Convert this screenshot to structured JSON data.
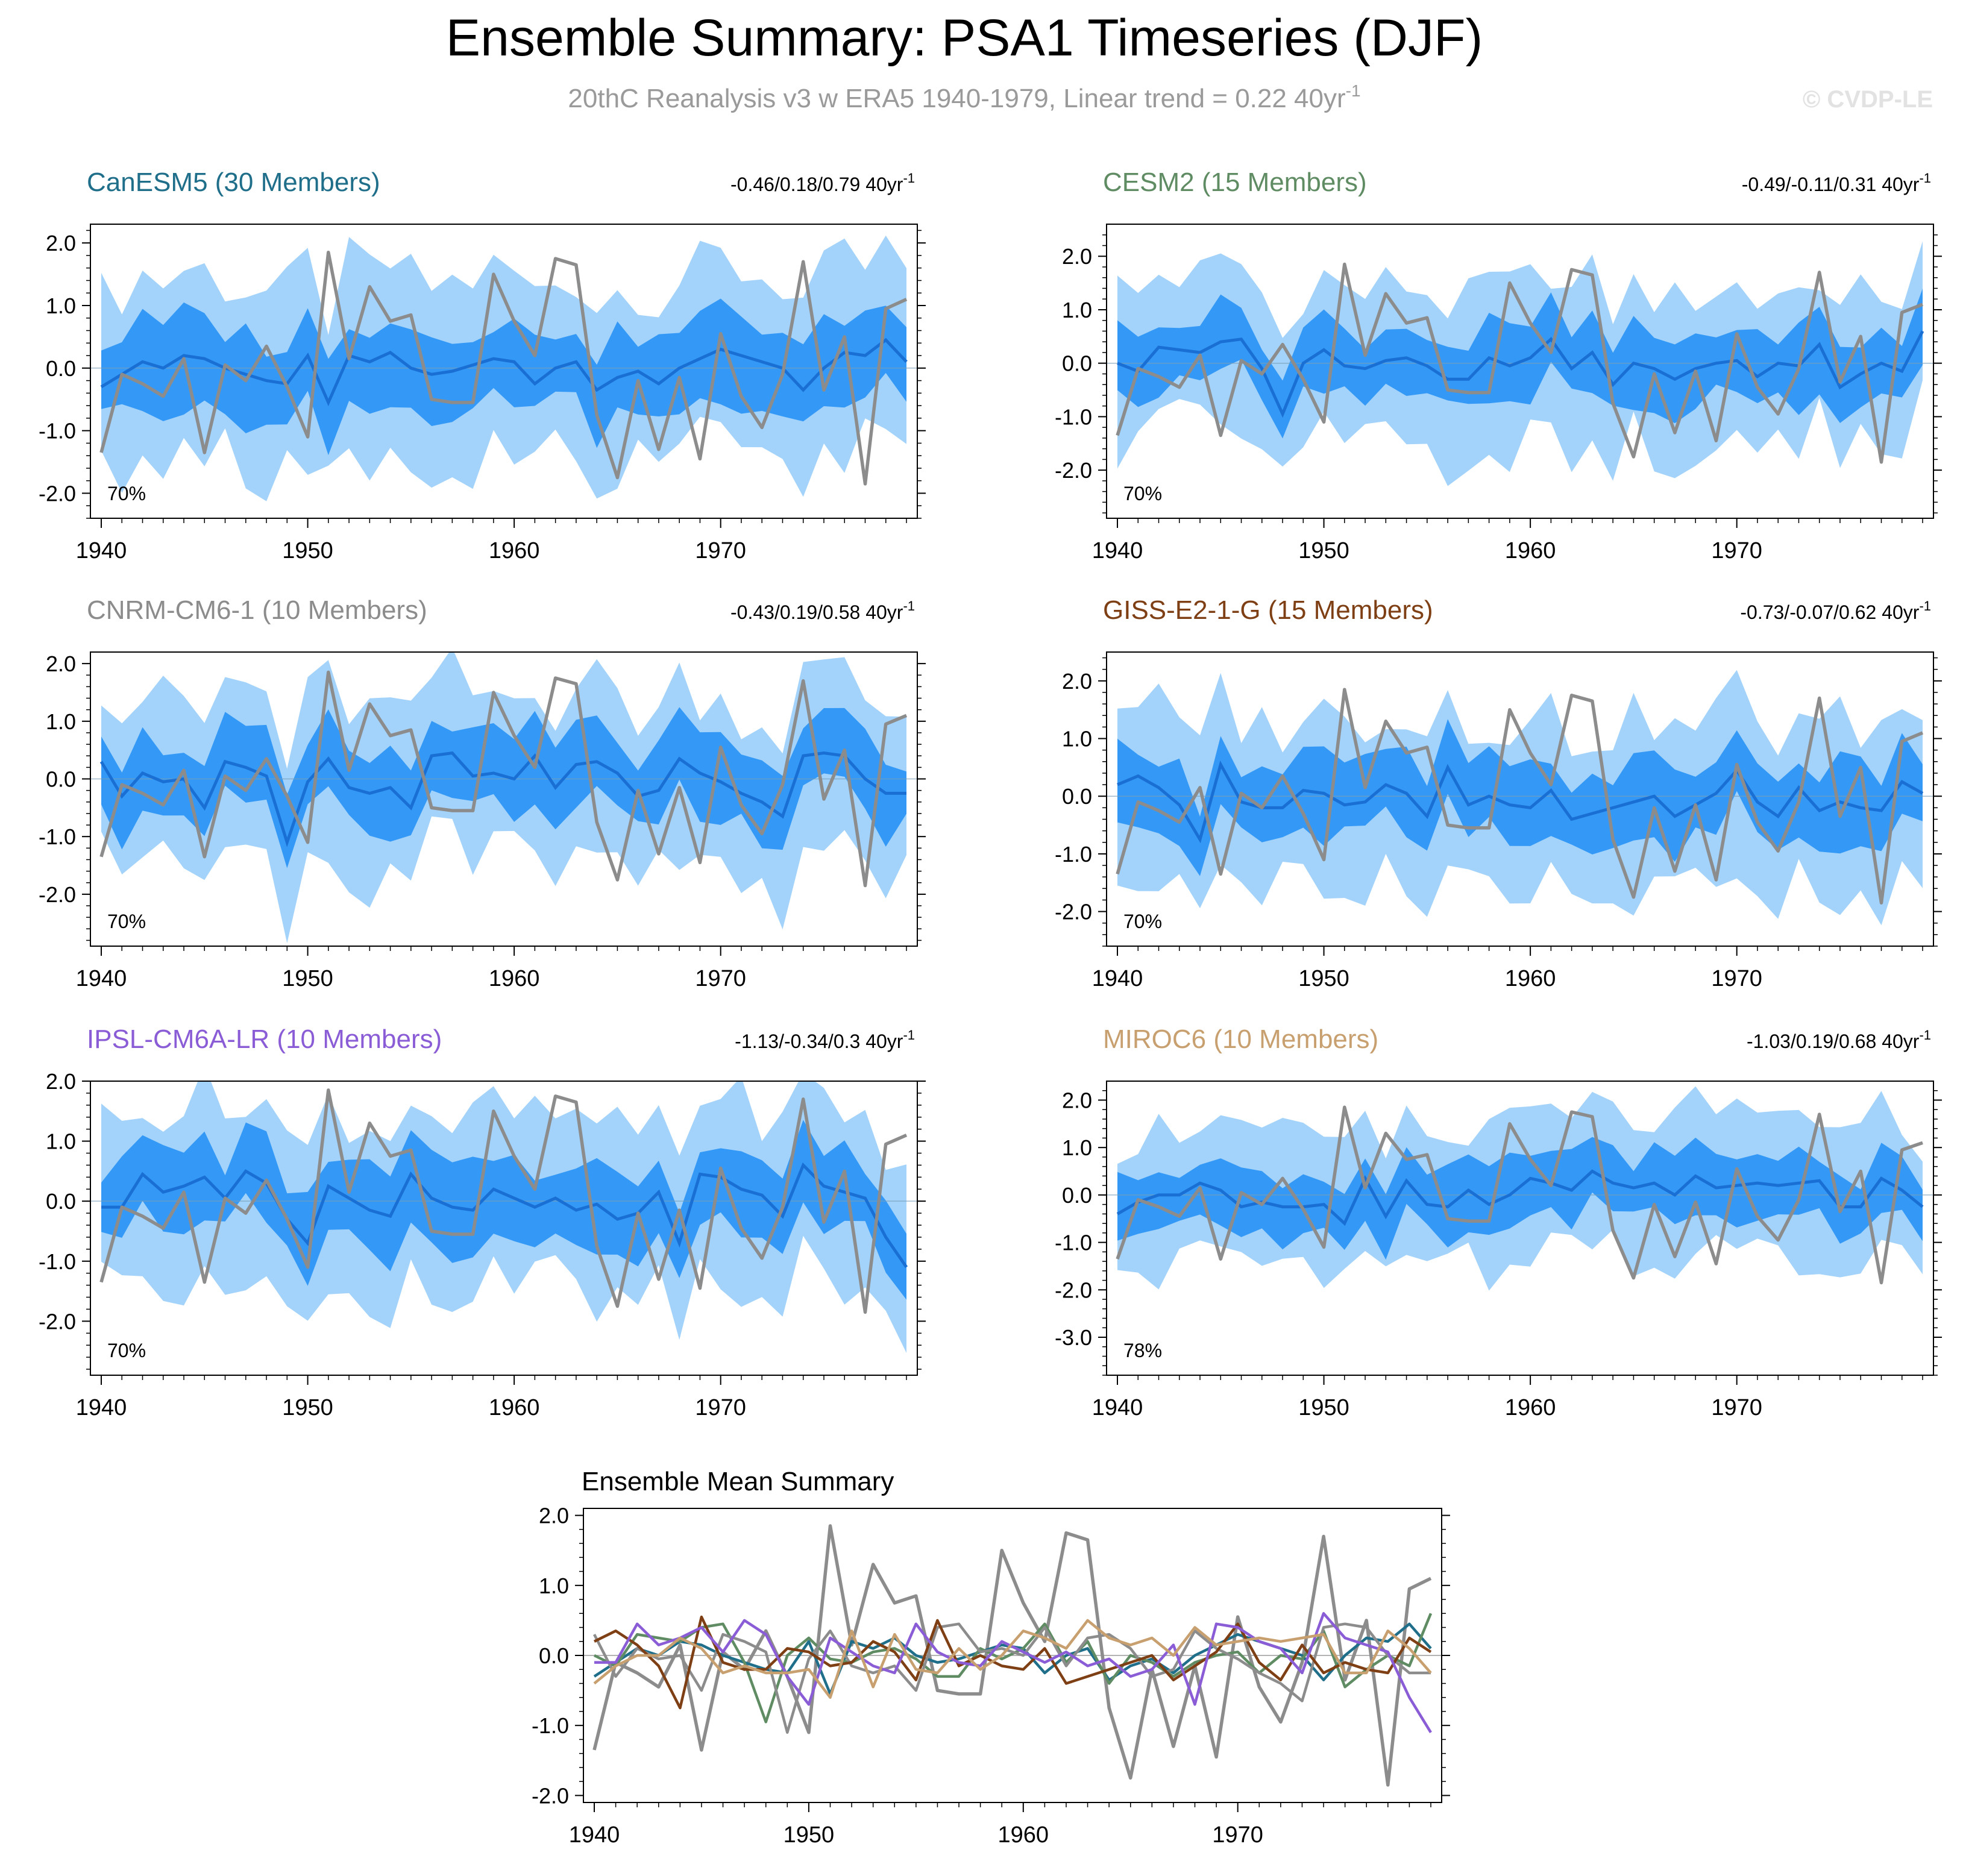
{
  "header": {
    "title": "Ensemble Summary: PSA1 Timeseries (DJF)",
    "subtitle_main": "20thC Reanalysis v3 w ERA5 1940-1979, Linear trend = 0.22 40yr",
    "subtitle_sup": "-1",
    "watermark": "© CVDP-LE"
  },
  "chart_data": {
    "type": "line",
    "years": [
      1940,
      1941,
      1942,
      1943,
      1944,
      1945,
      1946,
      1947,
      1948,
      1949,
      1950,
      1951,
      1952,
      1953,
      1954,
      1955,
      1956,
      1957,
      1958,
      1959,
      1960,
      1961,
      1962,
      1963,
      1964,
      1965,
      1966,
      1967,
      1968,
      1969,
      1970,
      1971,
      1972,
      1973,
      1974,
      1975,
      1976,
      1977,
      1978,
      1979
    ],
    "xticks": [
      "1940",
      "1950",
      "1960",
      "1970"
    ],
    "observed": {
      "name": "20thC Reanalysis v3 w ERA5",
      "color": "#8c8c8c",
      "values": [
        -1.35,
        -0.1,
        -0.25,
        -0.45,
        0.15,
        -1.35,
        0.05,
        -0.2,
        0.35,
        -0.3,
        -1.1,
        1.85,
        0.15,
        1.3,
        0.75,
        0.85,
        -0.5,
        -0.55,
        -0.55,
        1.5,
        0.75,
        0.2,
        1.75,
        1.65,
        -0.75,
        -1.75,
        -0.2,
        -1.3,
        -0.15,
        -1.45,
        0.55,
        -0.45,
        -0.95,
        -0.1,
        1.7,
        -0.35,
        0.5,
        -1.85,
        0.95,
        1.1
      ]
    },
    "panels": [
      {
        "model": "CanESM5",
        "members_label": "CanESM5 (30 Members)",
        "color": "#1f6e8a",
        "trend_text": "-0.46/0.18/0.79 40yr",
        "trend_sup": "-1",
        "pct_label": "70%",
        "ylim": [
          -2.4,
          2.3
        ],
        "yticks": [
          "2.0",
          "1.0",
          "0.0",
          "-1.0",
          "-2.0"
        ],
        "ytick_values": [
          2,
          1,
          0,
          -1,
          -2
        ],
        "ens_mean": [
          -0.3,
          -0.1,
          0.1,
          0.0,
          0.2,
          0.15,
          0.0,
          -0.1,
          -0.2,
          -0.25,
          0.2,
          -0.55,
          0.2,
          0.1,
          0.25,
          0.0,
          -0.1,
          -0.05,
          0.05,
          0.15,
          0.1,
          -0.25,
          0.0,
          0.1,
          -0.35,
          -0.15,
          -0.05,
          -0.25,
          0.0,
          0.15,
          0.3,
          0.2,
          0.1,
          0.0,
          -0.35,
          0.0,
          0.25,
          0.2,
          0.45,
          0.1
        ]
      },
      {
        "model": "CESM2",
        "members_label": "CESM2 (15 Members)",
        "color": "#5f8c63",
        "trend_text": "-0.49/-0.11/0.31 40yr",
        "trend_sup": "-1",
        "pct_label": "70%",
        "ylim": [
          -2.9,
          2.6
        ],
        "yticks": [
          "2.0",
          "1.0",
          "0.0",
          "-1.0",
          "-2.0"
        ],
        "ytick_values": [
          2,
          1,
          0,
          -1,
          -2
        ],
        "ens_mean": [
          0.0,
          -0.15,
          0.3,
          0.25,
          0.2,
          0.4,
          0.45,
          -0.1,
          -0.95,
          0.0,
          0.25,
          -0.05,
          -0.1,
          0.05,
          0.1,
          -0.05,
          -0.3,
          -0.3,
          0.1,
          -0.05,
          0.1,
          0.45,
          -0.1,
          0.2,
          -0.4,
          0.0,
          -0.1,
          -0.3,
          -0.1,
          0.0,
          0.05,
          -0.25,
          0.0,
          -0.05,
          0.35,
          -0.45,
          -0.2,
          0.0,
          -0.15,
          0.6
        ]
      },
      {
        "model": "CNRM-CM6-1",
        "members_label": "CNRM-CM6-1 (10 Members)",
        "color": "#8c8c8c",
        "trend_text": "-0.43/0.19/0.58 40yr",
        "trend_sup": "-1",
        "pct_label": "70%",
        "ylim": [
          -2.9,
          2.2
        ],
        "yticks": [
          "2.0",
          "1.0",
          "0.0",
          "-1.0",
          "-2.0"
        ],
        "ytick_values": [
          2,
          1,
          0,
          -1,
          -2
        ],
        "ens_mean": [
          0.3,
          -0.3,
          0.1,
          -0.05,
          0.0,
          -0.5,
          0.3,
          0.2,
          0.05,
          -1.1,
          -0.05,
          0.35,
          -0.15,
          -0.25,
          -0.15,
          -0.5,
          0.4,
          0.45,
          0.05,
          0.1,
          0.0,
          0.4,
          -0.15,
          0.25,
          0.3,
          0.1,
          -0.3,
          -0.2,
          0.35,
          0.1,
          -0.05,
          -0.25,
          -0.4,
          -0.65,
          0.4,
          0.45,
          0.4,
          0.0,
          -0.25,
          -0.25
        ]
      },
      {
        "model": "GISS-E2-1-G",
        "members_label": "GISS-E2-1-G (15 Members)",
        "color": "#7f3f14",
        "trend_text": "-0.73/-0.07/0.62 40yr",
        "trend_sup": "-1",
        "pct_label": "70%",
        "ylim": [
          -2.6,
          2.5
        ],
        "yticks": [
          "2.0",
          "1.0",
          "0.0",
          "-1.0",
          "-2.0"
        ],
        "ytick_values": [
          2,
          1,
          0,
          -1,
          -2
        ],
        "ens_mean": [
          0.2,
          0.35,
          0.15,
          -0.15,
          -0.75,
          0.55,
          -0.1,
          -0.2,
          -0.2,
          0.1,
          0.05,
          -0.15,
          -0.1,
          0.2,
          0.05,
          -0.35,
          0.5,
          -0.15,
          0.0,
          -0.15,
          -0.2,
          0.1,
          -0.4,
          -0.3,
          -0.2,
          -0.1,
          0.0,
          -0.35,
          -0.15,
          0.05,
          0.45,
          -0.1,
          -0.35,
          0.15,
          -0.25,
          -0.1,
          -0.2,
          -0.25,
          0.25,
          0.05
        ]
      },
      {
        "model": "IPSL-CM6A-LR",
        "members_label": "IPSL-CM6A-LR (10 Members)",
        "color": "#8a5cd6",
        "trend_text": "-1.13/-0.34/0.3 40yr",
        "trend_sup": "-1",
        "pct_label": "70%",
        "ylim": [
          -2.9,
          2.0
        ],
        "yticks": [
          "2.0",
          "1.0",
          "0.0",
          "-1.0",
          "-2.0"
        ],
        "ytick_values": [
          2,
          1,
          0,
          -1,
          -2
        ],
        "ens_mean": [
          -0.1,
          -0.1,
          0.45,
          0.15,
          0.25,
          0.4,
          0.05,
          0.5,
          0.3,
          -0.3,
          -0.7,
          0.25,
          0.05,
          -0.15,
          -0.25,
          0.45,
          0.05,
          -0.1,
          -0.15,
          0.2,
          0.05,
          -0.1,
          0.05,
          -0.15,
          -0.05,
          -0.3,
          -0.2,
          0.15,
          -0.7,
          0.45,
          0.4,
          0.2,
          0.1,
          -0.25,
          0.6,
          0.25,
          0.15,
          0.05,
          -0.6,
          -1.1
        ]
      },
      {
        "model": "MIROC6",
        "members_label": "MIROC6 (10 Members)",
        "color": "#c8a070",
        "trend_text": "-1.03/0.19/0.68 40yr",
        "trend_sup": "-1",
        "pct_label": "78%",
        "ylim": [
          -3.8,
          2.4
        ],
        "yticks": [
          "2.0",
          "1.0",
          "0.0",
          "-1.0",
          "-2.0",
          "-3.0"
        ],
        "ytick_values": [
          2,
          1,
          0,
          -1,
          -2,
          -3
        ],
        "ens_mean": [
          -0.4,
          -0.15,
          0.0,
          0.0,
          0.25,
          0.1,
          -0.25,
          -0.15,
          -0.25,
          -0.25,
          -0.2,
          -0.6,
          0.35,
          -0.45,
          0.3,
          -0.2,
          -0.25,
          0.1,
          -0.2,
          0.0,
          0.35,
          0.25,
          0.1,
          0.5,
          0.25,
          0.15,
          0.25,
          0.0,
          0.4,
          0.15,
          0.2,
          0.25,
          0.2,
          0.25,
          0.3,
          -0.25,
          -0.25,
          0.35,
          0.1,
          -0.25
        ]
      }
    ],
    "summary": {
      "title": "Ensemble Mean Summary",
      "ylim": [
        -2.1,
        2.1
      ],
      "yticks": [
        "2.0",
        "1.0",
        "0.0",
        "-1.0",
        "-2.0"
      ],
      "ytick_values": [
        2,
        1,
        0,
        -1,
        -2
      ]
    },
    "band_colors": {
      "outer": "#a3d3fb",
      "inner": "#3499f6",
      "mean": "#1a6fd4"
    }
  }
}
